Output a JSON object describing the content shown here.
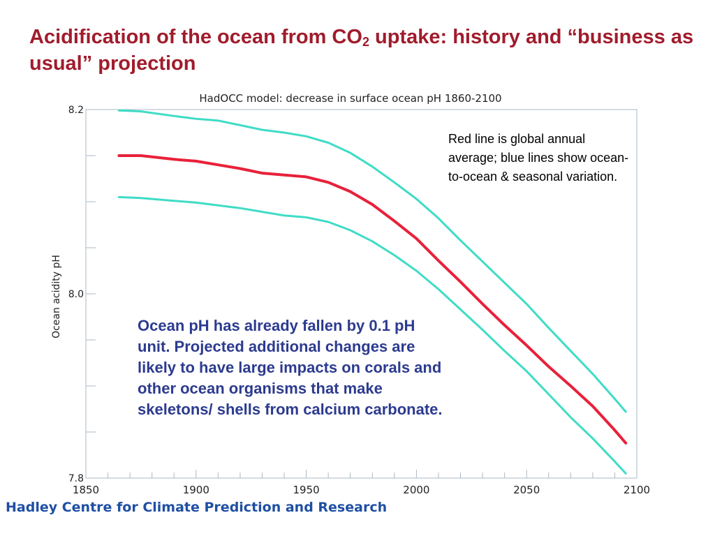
{
  "slide": {
    "title_part1": "Acidification of the ocean from CO",
    "title_sub": "2",
    "title_part2": " uptake:  history and “business as usual” projection",
    "credit": "Hadley Centre for Climate Prediction and Research",
    "note_lines": "Red line is global annual average; blue lines show ocean-to-ocean & seasonal variation.",
    "note_impacts": "Ocean pH has already fallen by 0.1 pH unit.  Projected additional changes are likely to have large impacts on corals and other ocean organisms that make skeletons/ shells from calcium carbonate."
  },
  "colors": {
    "title": "#a01c2c",
    "credit": "#1f4fa3",
    "average_line": "#e8213a",
    "range_lines": "#3fdcc6",
    "note_impacts": "#2c3b8f"
  },
  "chart_data": {
    "type": "line",
    "title": "HadOCC model: decrease in surface ocean pH 1860-2100",
    "xlabel": "",
    "ylabel": "Ocean acidity pH",
    "xlim": [
      1850,
      2100
    ],
    "ylim": [
      7.8,
      8.2
    ],
    "x_ticks": [
      1850,
      1900,
      1950,
      2000,
      2050,
      2100
    ],
    "y_ticks": [
      7.8,
      8.0,
      8.2
    ],
    "y_minor_ticks": [
      7.8,
      7.85,
      7.9,
      7.95,
      8.0,
      8.05,
      8.1,
      8.15,
      8.2
    ],
    "x_minor_ticks": [
      1850,
      1860,
      1870,
      1880,
      1890,
      1900,
      1910,
      1920,
      1930,
      1940,
      1950,
      1960,
      1970,
      1980,
      1990,
      2000,
      2010,
      2020,
      2030,
      2040,
      2050,
      2060,
      2070,
      2080,
      2090,
      2100
    ],
    "grid": false,
    "series": [
      {
        "role": "upper",
        "x": [
          1865,
          1875,
          1890,
          1900,
          1910,
          1920,
          1930,
          1940,
          1950,
          1960,
          1970,
          1980,
          1990,
          2000,
          2010,
          2020,
          2030,
          2040,
          2050,
          2060,
          2070,
          2080,
          2090,
          2095
        ],
        "values": [
          8.199,
          8.198,
          8.193,
          8.19,
          8.188,
          8.183,
          8.178,
          8.175,
          8.171,
          8.164,
          8.153,
          8.138,
          8.121,
          8.103,
          8.082,
          8.058,
          8.035,
          8.012,
          7.989,
          7.963,
          7.938,
          7.913,
          7.886,
          7.872
        ]
      },
      {
        "role": "average",
        "x": [
          1865,
          1875,
          1890,
          1900,
          1910,
          1920,
          1930,
          1940,
          1950,
          1960,
          1970,
          1980,
          1990,
          2000,
          2010,
          2020,
          2030,
          2040,
          2050,
          2060,
          2070,
          2080,
          2090,
          2095
        ],
        "values": [
          8.15,
          8.15,
          8.146,
          8.144,
          8.14,
          8.136,
          8.131,
          8.129,
          8.127,
          8.121,
          8.111,
          8.097,
          8.079,
          8.06,
          8.036,
          8.013,
          7.989,
          7.966,
          7.944,
          7.921,
          7.9,
          7.878,
          7.852,
          7.838
        ]
      },
      {
        "role": "lower",
        "x": [
          1865,
          1875,
          1890,
          1900,
          1910,
          1920,
          1930,
          1940,
          1950,
          1960,
          1970,
          1980,
          1990,
          2000,
          2010,
          2020,
          2030,
          2040,
          2050,
          2060,
          2070,
          2080,
          2090,
          2095
        ],
        "values": [
          8.105,
          8.104,
          8.101,
          8.099,
          8.096,
          8.093,
          8.089,
          8.085,
          8.083,
          8.078,
          8.069,
          8.057,
          8.042,
          8.025,
          8.005,
          7.983,
          7.961,
          7.938,
          7.916,
          7.891,
          7.866,
          7.843,
          7.818,
          7.805
        ]
      }
    ]
  }
}
